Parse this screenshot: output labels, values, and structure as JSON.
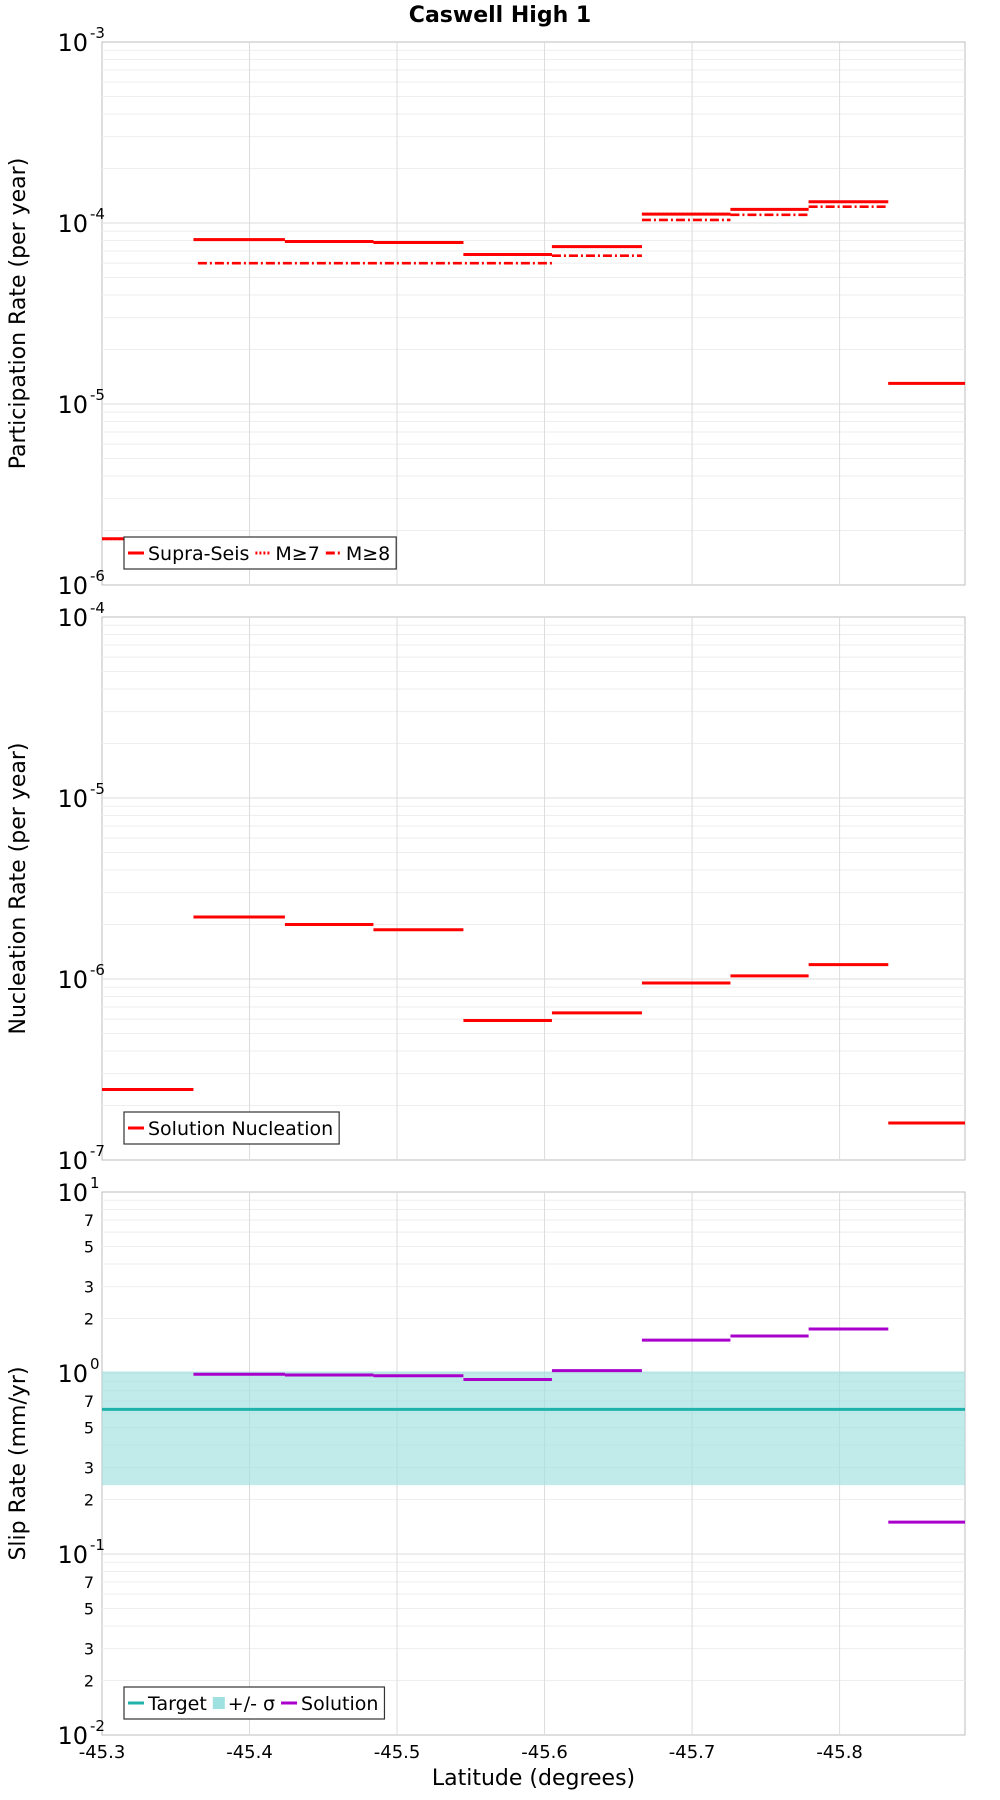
{
  "title": "Caswell High 1",
  "chart_data": [
    {
      "type": "line",
      "ylabel": "Participation Rate (per year)",
      "yscale": "log",
      "ylim": [
        1e-06,
        0.001
      ],
      "xlim": [
        -45.3,
        -45.885
      ],
      "x_ticks": [
        "-45.3",
        "-45.4",
        "-45.5",
        "-45.6",
        "-45.7",
        "-45.8"
      ],
      "legend_position": "bottom-left",
      "series": [
        {
          "name": "Supra-Seis",
          "color": "#ff0000",
          "style": "solid",
          "segments": [
            [
              -45.3,
              -45.362,
              1.8e-06
            ],
            [
              -45.362,
              -45.424,
              8.1e-05
            ],
            [
              -45.424,
              -45.484,
              7.9e-05
            ],
            [
              -45.484,
              -45.545,
              7.8e-05
            ],
            [
              -45.545,
              -45.605,
              6.7e-05
            ],
            [
              -45.605,
              -45.666,
              7.4e-05
            ],
            [
              -45.666,
              -45.726,
              0.000112
            ],
            [
              -45.726,
              -45.779,
              0.000119
            ],
            [
              -45.779,
              -45.833,
              0.000131
            ],
            [
              -45.833,
              -45.885,
              1.3e-05
            ]
          ]
        },
        {
          "name": "M≥7",
          "color": "#ff0000",
          "style": "dotted",
          "segments": [
            [
              -45.3,
              -45.362,
              1.8e-06
            ],
            [
              -45.362,
              -45.424,
              8.1e-05
            ],
            [
              -45.424,
              -45.484,
              7.9e-05
            ],
            [
              -45.484,
              -45.545,
              7.8e-05
            ],
            [
              -45.545,
              -45.605,
              6.7e-05
            ],
            [
              -45.605,
              -45.666,
              7.4e-05
            ],
            [
              -45.666,
              -45.726,
              0.000112
            ],
            [
              -45.726,
              -45.779,
              0.000119
            ],
            [
              -45.779,
              -45.833,
              0.000131
            ],
            [
              -45.833,
              -45.885,
              1.3e-05
            ]
          ]
        },
        {
          "name": "M≥8",
          "color": "#ff0000",
          "style": "dashdot",
          "segments": [
            [
              -45.365,
              -45.605,
              6e-05
            ],
            [
              -45.605,
              -45.666,
              6.6e-05
            ],
            [
              -45.666,
              -45.726,
              0.000104
            ],
            [
              -45.726,
              -45.779,
              0.000111
            ],
            [
              -45.779,
              -45.833,
              0.000123
            ]
          ]
        }
      ]
    },
    {
      "type": "line",
      "ylabel": "Nucleation Rate (per year)",
      "yscale": "log",
      "ylim": [
        1e-07,
        0.0001
      ],
      "xlim": [
        -45.3,
        -45.885
      ],
      "legend_position": "bottom-left",
      "series": [
        {
          "name": "Solution Nucleation",
          "color": "#ff0000",
          "style": "solid",
          "segments": [
            [
              -45.3,
              -45.362,
              2.45e-07
            ],
            [
              -45.362,
              -45.424,
              2.2e-06
            ],
            [
              -45.424,
              -45.484,
              2e-06
            ],
            [
              -45.484,
              -45.545,
              1.87e-06
            ],
            [
              -45.545,
              -45.605,
              5.9e-07
            ],
            [
              -45.605,
              -45.666,
              6.5e-07
            ],
            [
              -45.666,
              -45.726,
              9.5e-07
            ],
            [
              -45.726,
              -45.779,
              1.04e-06
            ],
            [
              -45.779,
              -45.833,
              1.2e-06
            ],
            [
              -45.833,
              -45.885,
              1.6e-07
            ]
          ]
        }
      ]
    },
    {
      "type": "line",
      "ylabel": "Slip Rate (mm/yr)",
      "xlabel": "Latitude (degrees)",
      "yscale": "log",
      "ylim": [
        0.01,
        10
      ],
      "xlim": [
        -45.3,
        -45.885
      ],
      "x_ticks": [
        "-45.3",
        "-45.4",
        "-45.5",
        "-45.6",
        "-45.7",
        "-45.8"
      ],
      "y_minor_labels": [
        "2",
        "3",
        "5",
        "7"
      ],
      "legend_position": "bottom-left",
      "band": {
        "name": "+/- σ",
        "color": "#9fe0e0",
        "low": 0.24,
        "high": 1.02
      },
      "series": [
        {
          "name": "Target",
          "color": "#20b2aa",
          "style": "solid",
          "segments": [
            [
              -45.3,
              -45.885,
              0.63
            ]
          ]
        },
        {
          "name": "Solution",
          "color": "#aa00cc",
          "style": "solid",
          "segments": [
            [
              -45.362,
              -45.424,
              0.985
            ],
            [
              -45.424,
              -45.484,
              0.975
            ],
            [
              -45.484,
              -45.545,
              0.965
            ],
            [
              -45.545,
              -45.605,
              0.92
            ],
            [
              -45.605,
              -45.666,
              1.03
            ],
            [
              -45.666,
              -45.726,
              1.52
            ],
            [
              -45.726,
              -45.779,
              1.6
            ],
            [
              -45.779,
              -45.833,
              1.75
            ],
            [
              -45.833,
              -45.885,
              0.15
            ]
          ]
        }
      ]
    }
  ]
}
